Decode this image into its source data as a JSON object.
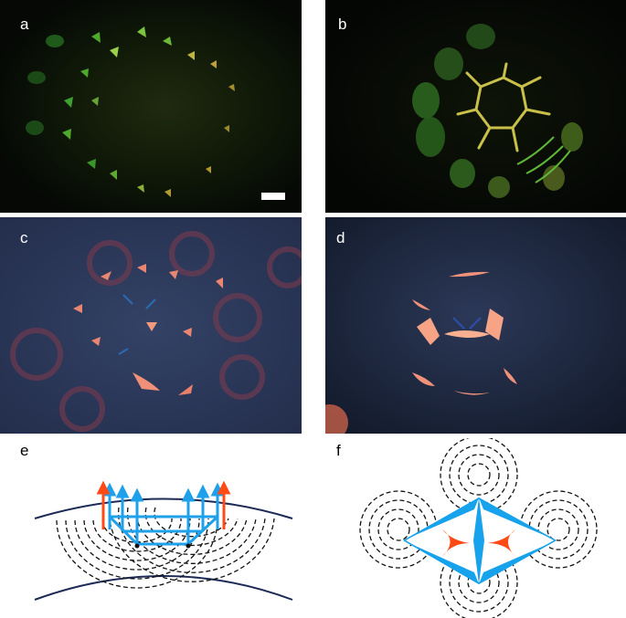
{
  "figure": {
    "panels": [
      {
        "id": "a",
        "label": "a",
        "kind": "fluorescence-image",
        "tone": "green-yellow"
      },
      {
        "id": "b",
        "label": "b",
        "kind": "fluorescence-image",
        "tone": "green-yellow"
      },
      {
        "id": "c",
        "label": "c",
        "kind": "fluorescence-image",
        "tone": "red-blue"
      },
      {
        "id": "d",
        "label": "d",
        "kind": "fluorescence-image",
        "tone": "red-blue"
      },
      {
        "id": "e",
        "label": "e",
        "kind": "schematic-cross-section"
      },
      {
        "id": "f",
        "label": "f",
        "kind": "schematic-top-view"
      }
    ],
    "colors": {
      "arrow_red": "#ff4a16",
      "arrow_blue": "#1ea0ea",
      "shape_blue": "#17a2ec",
      "shape_red": "#ff4a16",
      "surface_line": "#1c2a55",
      "dashed": "#111111",
      "dark_bg": "#050a05",
      "blue_bg": "#2a3656"
    },
    "scale_bar": {
      "panel": "a",
      "color": "#ffffff"
    }
  }
}
